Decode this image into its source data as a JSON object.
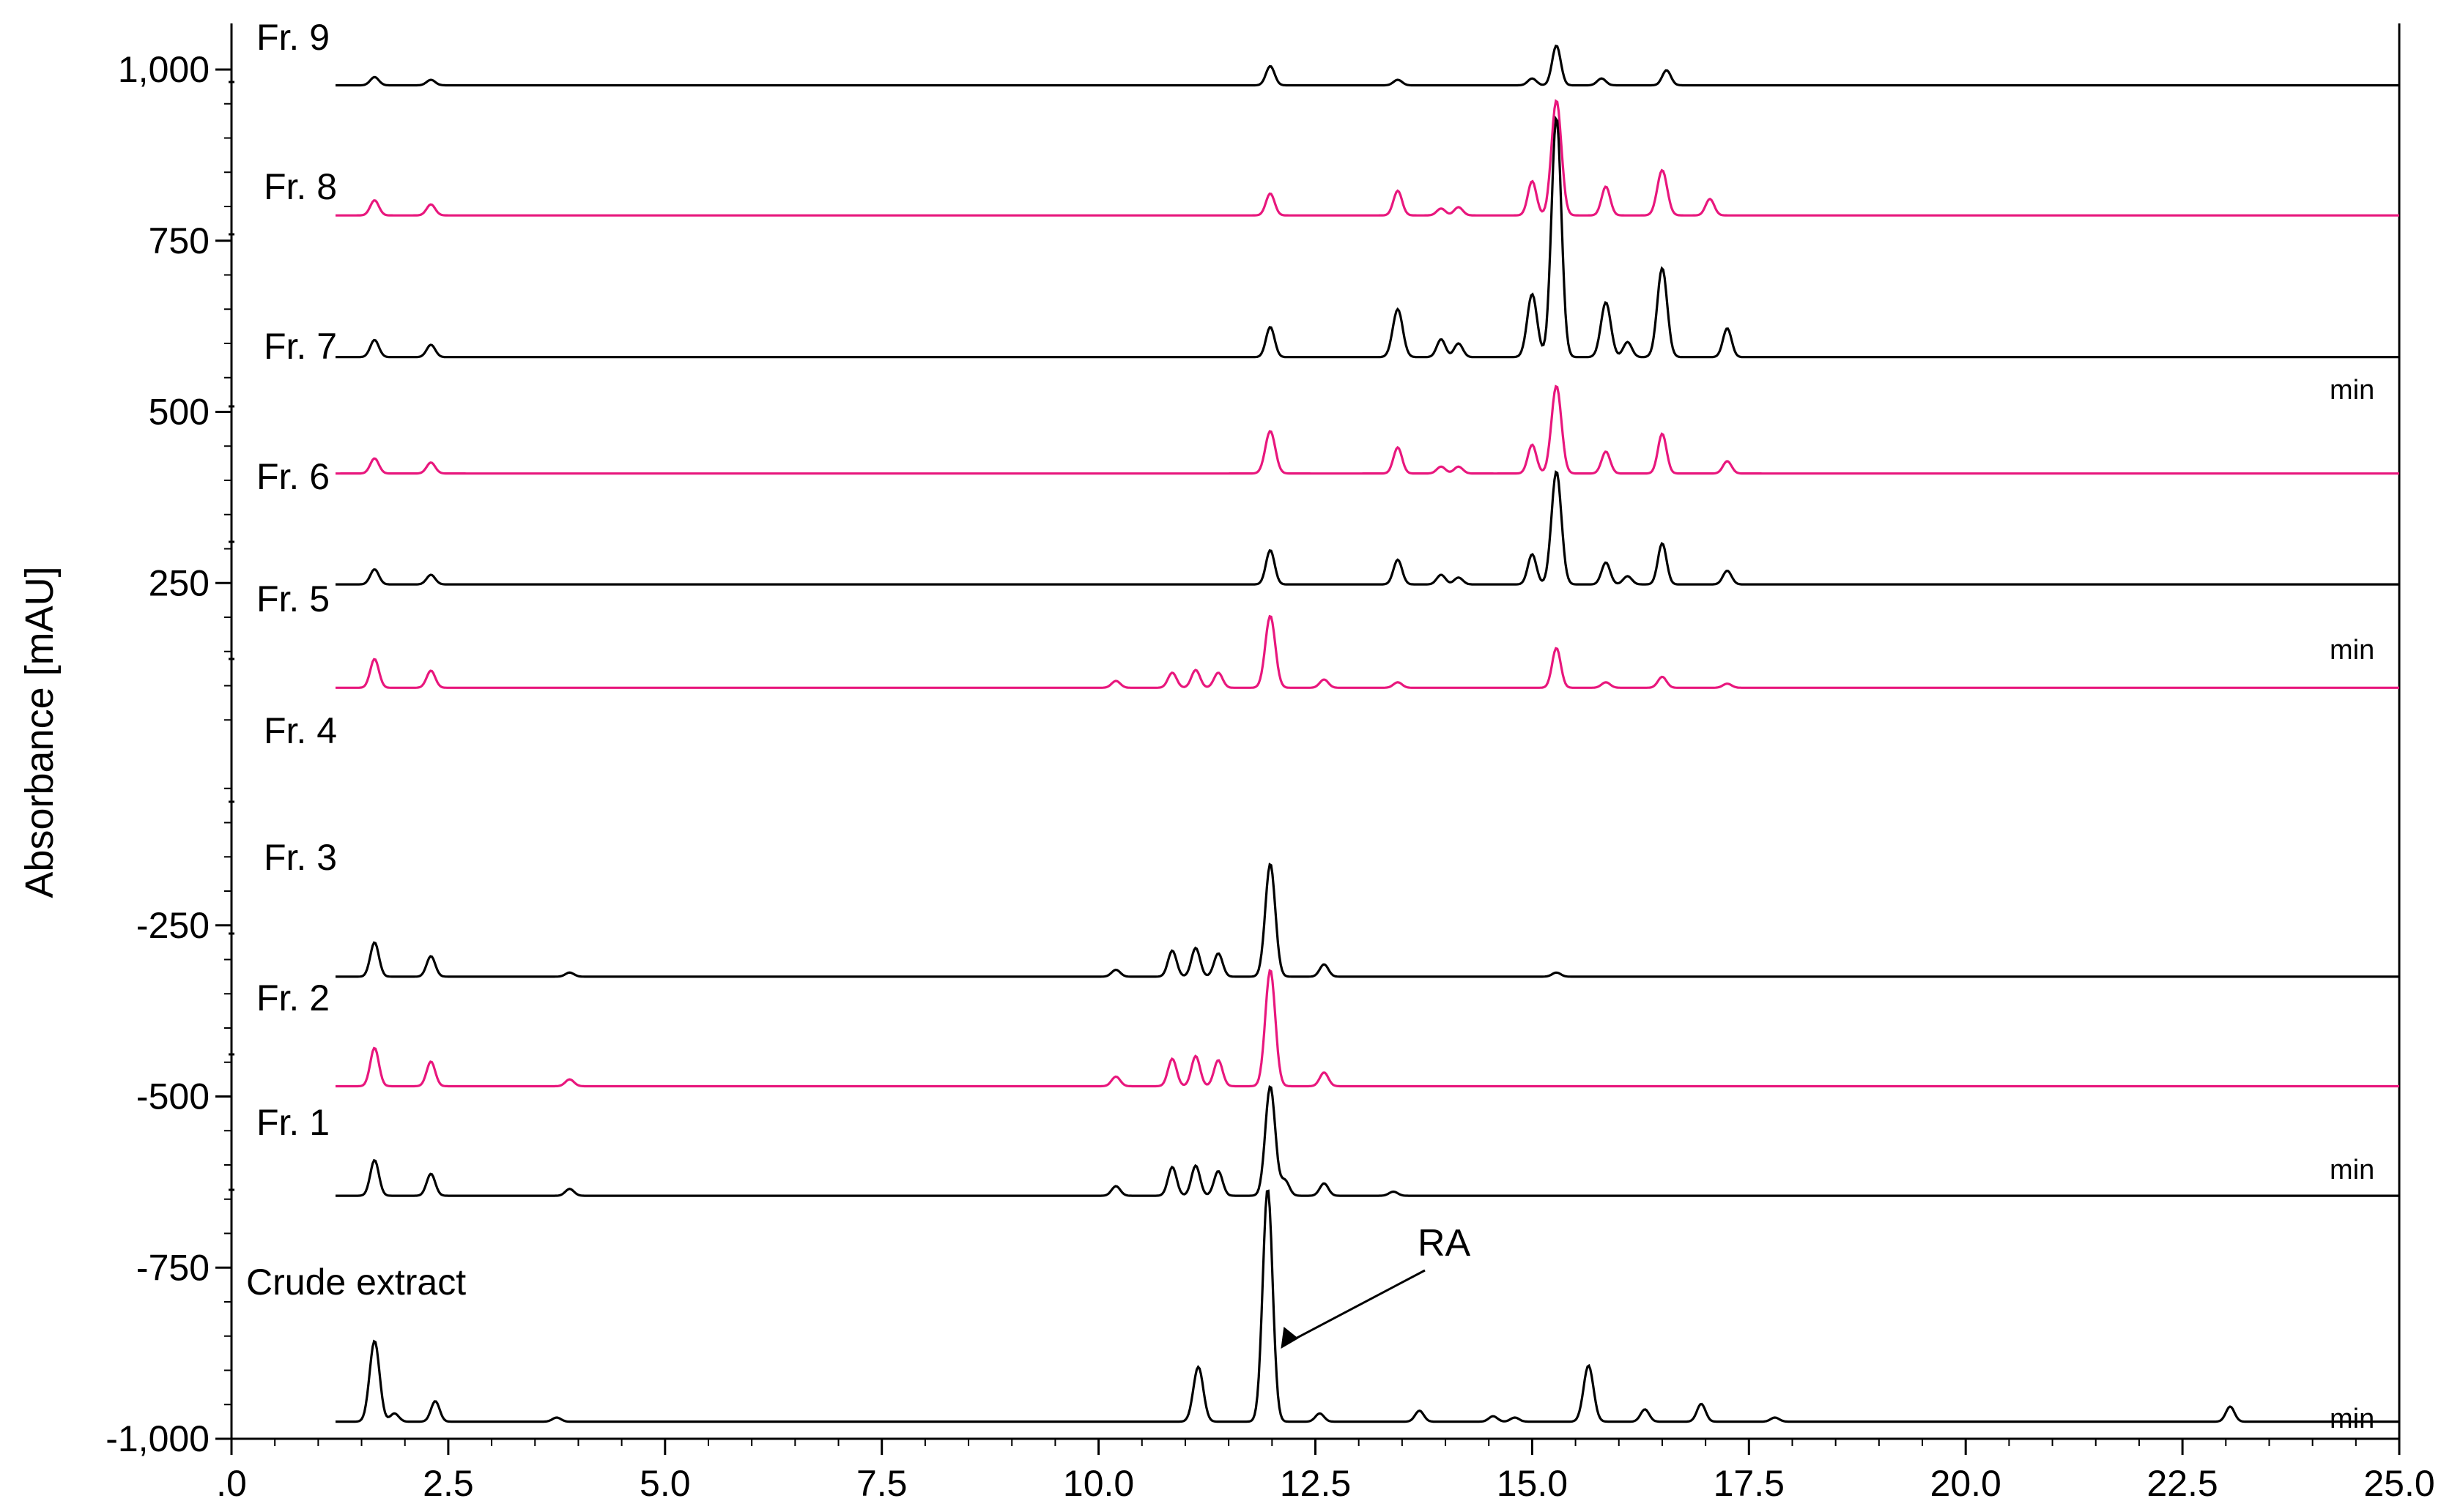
{
  "chart_data": {
    "type": "line",
    "ylabel": "Absorbance [mAU]",
    "x_unit_label": "min",
    "xlim": [
      0,
      25
    ],
    "ylim": [
      -1000,
      1000
    ],
    "x_ticks": [
      ".0",
      "2.5",
      "5.0",
      "7.5",
      "10.0",
      "12.5",
      "15.0",
      "17.5",
      "20.0",
      "22.5",
      "25.0"
    ],
    "y_ticks": [
      {
        "value": 1000,
        "label": "1,000"
      },
      {
        "value": 750,
        "label": "750"
      },
      {
        "value": 500,
        "label": "500"
      },
      {
        "value": 250,
        "label": "250"
      },
      {
        "value": -250,
        "label": "-250"
      },
      {
        "value": -500,
        "label": "-500"
      },
      {
        "value": -750,
        "label": "-750"
      },
      {
        "value": -1000,
        "label": "-1,000"
      }
    ],
    "series": [
      {
        "name": "Fr. 9",
        "color": "#000000",
        "baseline": 977,
        "peaks": [
          [
            1.65,
            12
          ],
          [
            2.3,
            8
          ],
          [
            11.98,
            28
          ],
          [
            13.45,
            8
          ],
          [
            15.0,
            10
          ],
          [
            15.28,
            58
          ],
          [
            15.8,
            10
          ],
          [
            16.55,
            22
          ]
        ]
      },
      {
        "name": "Fr. 8",
        "color": "#e8177d",
        "baseline": 787,
        "peaks": [
          [
            1.65,
            22
          ],
          [
            2.3,
            16
          ],
          [
            11.98,
            32
          ],
          [
            13.45,
            36
          ],
          [
            13.95,
            10
          ],
          [
            14.15,
            12
          ],
          [
            15.0,
            50
          ],
          [
            15.28,
            168
          ],
          [
            15.85,
            42
          ],
          [
            16.5,
            66
          ],
          [
            17.05,
            24
          ]
        ]
      },
      {
        "name": "Fr. 7",
        "color": "#000000",
        "baseline": 580,
        "peaks": [
          [
            1.65,
            25
          ],
          [
            2.3,
            18
          ],
          [
            11.98,
            44
          ],
          [
            13.45,
            70
          ],
          [
            13.95,
            26
          ],
          [
            14.15,
            20
          ],
          [
            15.0,
            92
          ],
          [
            15.28,
            350
          ],
          [
            15.85,
            80
          ],
          [
            16.1,
            22
          ],
          [
            16.5,
            130
          ],
          [
            17.25,
            42
          ]
        ]
      },
      {
        "name": "Fr. 6",
        "color": "#e8177d",
        "baseline": 410,
        "peaks": [
          [
            1.65,
            22
          ],
          [
            2.3,
            16
          ],
          [
            11.98,
            62
          ],
          [
            13.45,
            38
          ],
          [
            13.95,
            10
          ],
          [
            14.15,
            10
          ],
          [
            15.0,
            42
          ],
          [
            15.28,
            128
          ],
          [
            15.85,
            32
          ],
          [
            16.5,
            58
          ],
          [
            17.25,
            18
          ]
        ]
      },
      {
        "name": "Fr. 5",
        "color": "#000000",
        "baseline": 248,
        "peaks": [
          [
            1.65,
            22
          ],
          [
            2.3,
            14
          ],
          [
            11.98,
            50
          ],
          [
            13.45,
            36
          ],
          [
            13.95,
            14
          ],
          [
            14.15,
            10
          ],
          [
            15.0,
            44
          ],
          [
            15.28,
            165
          ],
          [
            15.85,
            32
          ],
          [
            16.1,
            12
          ],
          [
            16.5,
            60
          ],
          [
            17.25,
            20
          ]
        ]
      },
      {
        "name": "Fr. 4",
        "color": "#e8177d",
        "baseline": 97,
        "peaks": [
          [
            1.65,
            42
          ],
          [
            2.3,
            25
          ],
          [
            10.2,
            10
          ],
          [
            10.85,
            22
          ],
          [
            11.12,
            26
          ],
          [
            11.38,
            22
          ],
          [
            11.98,
            105
          ],
          [
            12.6,
            12
          ],
          [
            13.45,
            8
          ],
          [
            15.28,
            58
          ],
          [
            15.85,
            8
          ],
          [
            16.5,
            16
          ],
          [
            17.25,
            6
          ]
        ]
      },
      {
        "name": "Fr. 3",
        "color": "#000000",
        "baseline": -325,
        "peaks": [
          [
            1.65,
            50
          ],
          [
            2.3,
            30
          ],
          [
            3.9,
            6
          ],
          [
            10.2,
            10
          ],
          [
            10.85,
            38
          ],
          [
            11.12,
            42
          ],
          [
            11.38,
            34
          ],
          [
            11.98,
            165
          ],
          [
            12.6,
            18
          ],
          [
            15.28,
            6
          ]
        ]
      },
      {
        "name": "Fr. 2",
        "color": "#e8177d",
        "baseline": -485,
        "peaks": [
          [
            1.65,
            56
          ],
          [
            2.3,
            36
          ],
          [
            3.9,
            10
          ],
          [
            10.2,
            14
          ],
          [
            10.85,
            40
          ],
          [
            11.12,
            44
          ],
          [
            11.38,
            38
          ],
          [
            11.98,
            170
          ],
          [
            12.6,
            20
          ]
        ]
      },
      {
        "name": "Fr. 1",
        "color": "#000000",
        "baseline": -645,
        "peaks": [
          [
            1.65,
            52
          ],
          [
            2.3,
            32
          ],
          [
            3.9,
            10
          ],
          [
            10.2,
            14
          ],
          [
            10.85,
            42
          ],
          [
            11.12,
            44
          ],
          [
            11.38,
            36
          ],
          [
            11.98,
            160
          ],
          [
            12.15,
            22
          ],
          [
            12.6,
            18
          ],
          [
            13.4,
            6
          ]
        ]
      },
      {
        "name": "Crude extract",
        "color": "#000000",
        "baseline": -975,
        "peaks": [
          [
            1.65,
            118
          ],
          [
            1.88,
            12
          ],
          [
            2.35,
            30
          ],
          [
            3.75,
            6
          ],
          [
            11.15,
            80
          ],
          [
            11.95,
            340
          ],
          [
            12.55,
            12
          ],
          [
            13.7,
            16
          ],
          [
            14.55,
            8
          ],
          [
            14.8,
            6
          ],
          [
            15.65,
            82
          ],
          [
            16.3,
            18
          ],
          [
            16.95,
            26
          ],
          [
            17.8,
            6
          ],
          [
            23.05,
            22
          ]
        ]
      }
    ],
    "annotations": [
      {
        "text": "RA",
        "x": 11.95
      }
    ]
  }
}
